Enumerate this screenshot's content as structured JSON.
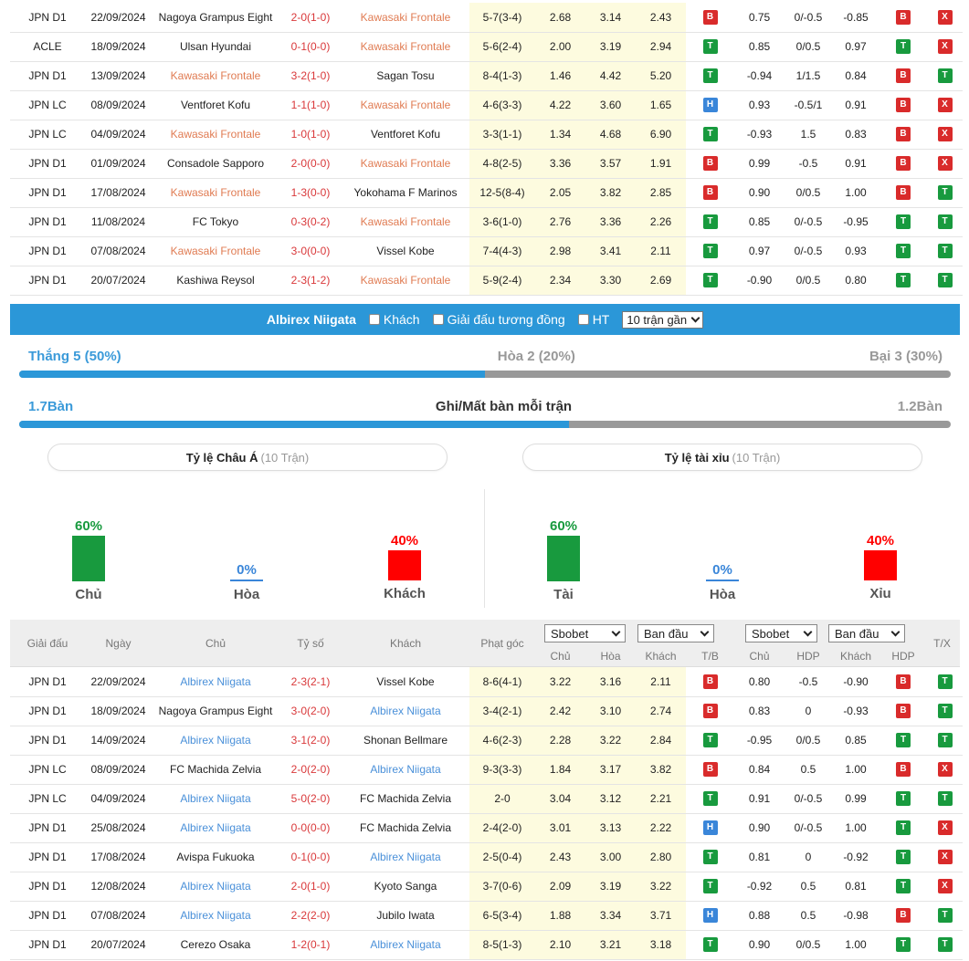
{
  "top_rows": [
    {
      "league": "JPN D1",
      "date": "22/09/2024",
      "home": "Nagoya Grampus Eight",
      "score": "2-0(1-0)",
      "away": "Kawasaki Frontale",
      "corner": "5-7(3-4)",
      "o1": "2.68",
      "o2": "3.14",
      "o3": "2.43",
      "r1": "B",
      "h1": "0.75",
      "h2": "0/-0.5",
      "h3": "-0.85",
      "r2": "B",
      "r3": "X",
      "hl": "away"
    },
    {
      "league": "ACLE",
      "date": "18/09/2024",
      "home": "Ulsan Hyundai",
      "score": "0-1(0-0)",
      "away": "Kawasaki Frontale",
      "corner": "5-6(2-4)",
      "o1": "2.00",
      "o2": "3.19",
      "o3": "2.94",
      "r1": "T",
      "h1": "0.85",
      "h2": "0/0.5",
      "h3": "0.97",
      "r2": "T",
      "r3": "X",
      "hl": "away"
    },
    {
      "league": "JPN D1",
      "date": "13/09/2024",
      "home": "Kawasaki Frontale",
      "score": "3-2(1-0)",
      "away": "Sagan Tosu",
      "corner": "8-4(1-3)",
      "o1": "1.46",
      "o2": "4.42",
      "o3": "5.20",
      "r1": "T",
      "h1": "-0.94",
      "h2": "1/1.5",
      "h3": "0.84",
      "r2": "B",
      "r3": "T",
      "hl": "home"
    },
    {
      "league": "JPN LC",
      "date": "08/09/2024",
      "home": "Ventforet Kofu",
      "score": "1-1(1-0)",
      "away": "Kawasaki Frontale",
      "corner": "4-6(3-3)",
      "o1": "4.22",
      "o2": "3.60",
      "o3": "1.65",
      "r1": "H",
      "h1": "0.93",
      "h2": "-0.5/1",
      "h3": "0.91",
      "r2": "B",
      "r3": "X",
      "hl": "away"
    },
    {
      "league": "JPN LC",
      "date": "04/09/2024",
      "home": "Kawasaki Frontale",
      "score": "1-0(1-0)",
      "away": "Ventforet Kofu",
      "corner": "3-3(1-1)",
      "o1": "1.34",
      "o2": "4.68",
      "o3": "6.90",
      "r1": "T",
      "h1": "-0.93",
      "h2": "1.5",
      "h3": "0.83",
      "r2": "B",
      "r3": "X",
      "hl": "home"
    },
    {
      "league": "JPN D1",
      "date": "01/09/2024",
      "home": "Consadole Sapporo",
      "score": "2-0(0-0)",
      "away": "Kawasaki Frontale",
      "corner": "4-8(2-5)",
      "o1": "3.36",
      "o2": "3.57",
      "o3": "1.91",
      "r1": "B",
      "h1": "0.99",
      "h2": "-0.5",
      "h3": "0.91",
      "r2": "B",
      "r3": "X",
      "hl": "away"
    },
    {
      "league": "JPN D1",
      "date": "17/08/2024",
      "home": "Kawasaki Frontale",
      "score": "1-3(0-0)",
      "away": "Yokohama F Marinos",
      "corner": "12-5(8-4)",
      "o1": "2.05",
      "o2": "3.82",
      "o3": "2.85",
      "r1": "B",
      "h1": "0.90",
      "h2": "0/0.5",
      "h3": "1.00",
      "r2": "B",
      "r3": "T",
      "hl": "home"
    },
    {
      "league": "JPN D1",
      "date": "11/08/2024",
      "home": "FC Tokyo",
      "score": "0-3(0-2)",
      "away": "Kawasaki Frontale",
      "corner": "3-6(1-0)",
      "o1": "2.76",
      "o2": "3.36",
      "o3": "2.26",
      "r1": "T",
      "h1": "0.85",
      "h2": "0/-0.5",
      "h3": "-0.95",
      "r2": "T",
      "r3": "T",
      "hl": "away"
    },
    {
      "league": "JPN D1",
      "date": "07/08/2024",
      "home": "Kawasaki Frontale",
      "score": "3-0(0-0)",
      "away": "Vissel Kobe",
      "corner": "7-4(4-3)",
      "o1": "2.98",
      "o2": "3.41",
      "o3": "2.11",
      "r1": "T",
      "h1": "0.97",
      "h2": "0/-0.5",
      "h3": "0.93",
      "r2": "T",
      "r3": "T",
      "hl": "home"
    },
    {
      "league": "JPN D1",
      "date": "20/07/2024",
      "home": "Kashiwa Reysol",
      "score": "2-3(1-2)",
      "away": "Kawasaki Frontale",
      "corner": "5-9(2-4)",
      "o1": "2.34",
      "o2": "3.30",
      "o3": "2.69",
      "r1": "T",
      "h1": "-0.90",
      "h2": "0/0.5",
      "h3": "0.80",
      "r2": "T",
      "r3": "T",
      "hl": "away"
    }
  ],
  "team_bar": {
    "team_name": "Albirex Niigata",
    "opt_away": "Khách",
    "opt_same_league": "Giải đấu tương đồng",
    "opt_ht": "HT",
    "recent_select": "10 trận gần"
  },
  "summary": {
    "win_label": "Thắng 5 (50%)",
    "draw_label": "Hòa 2 (20%)",
    "loss_label": "Bại 3 (30%)",
    "win_fraction": 0.5,
    "goals_for": "1.7Bàn",
    "goals_title": "Ghi/Mất bàn mỗi trận",
    "goals_against": "1.2Bàn",
    "goals_fraction": 0.59
  },
  "asian": {
    "title": "Tỷ lệ Châu Á",
    "sub": "(10 Trận)",
    "home_pct": "60%",
    "draw_pct": "0%",
    "away_pct": "40%",
    "home_label": "Chủ",
    "draw_label": "Hòa",
    "away_label": "Khách",
    "home_value": 60,
    "away_value": 40
  },
  "overunder": {
    "title": "Tỷ lệ tài xỉu",
    "sub": "(10 Trận)",
    "over_pct": "60%",
    "draw_pct": "0%",
    "under_pct": "40%",
    "over_label": "Tài",
    "draw_label": "Hòa",
    "under_label": "Xỉu",
    "over_value": 60,
    "under_value": 40
  },
  "colors": {
    "green": "#189a3e",
    "red": "#ff0000",
    "blue": "#2b97d8"
  },
  "table_header": {
    "league": "Giải đấu",
    "date": "Ngày",
    "home": "Chủ",
    "score": "Tỷ số",
    "away": "Khách",
    "corner": "Phạt góc",
    "book1": "Sbobet",
    "type1": "Ban đầu",
    "book2": "Sbobet",
    "type2": "Ban đầu",
    "sub_home": "Chủ",
    "sub_draw": "Hòa",
    "sub_away": "Khách",
    "sub_tb": "T/B",
    "sub_home2": "Chủ",
    "sub_hdp": "HDP",
    "sub_away2": "Khách",
    "sub_hdp2": "HDP",
    "tx": "T/X"
  },
  "bottom_rows": [
    {
      "league": "JPN D1",
      "date": "22/09/2024",
      "home": "Albirex Niigata",
      "score": "2-3(2-1)",
      "away": "Vissel Kobe",
      "corner": "8-6(4-1)",
      "o1": "3.22",
      "o2": "3.16",
      "o3": "2.11",
      "r1": "B",
      "h1": "0.80",
      "h2": "-0.5",
      "h3": "-0.90",
      "r2": "B",
      "r3": "T",
      "hl": "home"
    },
    {
      "league": "JPN D1",
      "date": "18/09/2024",
      "home": "Nagoya Grampus Eight",
      "score": "3-0(2-0)",
      "away": "Albirex Niigata",
      "corner": "3-4(2-1)",
      "o1": "2.42",
      "o2": "3.10",
      "o3": "2.74",
      "r1": "B",
      "h1": "0.83",
      "h2": "0",
      "h3": "-0.93",
      "r2": "B",
      "r3": "T",
      "hl": "away"
    },
    {
      "league": "JPN D1",
      "date": "14/09/2024",
      "home": "Albirex Niigata",
      "score": "3-1(2-0)",
      "away": "Shonan Bellmare",
      "corner": "4-6(2-3)",
      "o1": "2.28",
      "o2": "3.22",
      "o3": "2.84",
      "r1": "T",
      "h1": "-0.95",
      "h2": "0/0.5",
      "h3": "0.85",
      "r2": "T",
      "r3": "T",
      "hl": "home"
    },
    {
      "league": "JPN LC",
      "date": "08/09/2024",
      "home": "FC Machida Zelvia",
      "score": "2-0(2-0)",
      "away": "Albirex Niigata",
      "corner": "9-3(3-3)",
      "o1": "1.84",
      "o2": "3.17",
      "o3": "3.82",
      "r1": "B",
      "h1": "0.84",
      "h2": "0.5",
      "h3": "1.00",
      "r2": "B",
      "r3": "X",
      "hl": "away"
    },
    {
      "league": "JPN LC",
      "date": "04/09/2024",
      "home": "Albirex Niigata",
      "score": "5-0(2-0)",
      "away": "FC Machida Zelvia",
      "corner": "2-0",
      "o1": "3.04",
      "o2": "3.12",
      "o3": "2.21",
      "r1": "T",
      "h1": "0.91",
      "h2": "0/-0.5",
      "h3": "0.99",
      "r2": "T",
      "r3": "T",
      "hl": "home"
    },
    {
      "league": "JPN D1",
      "date": "25/08/2024",
      "home": "Albirex Niigata",
      "score": "0-0(0-0)",
      "away": "FC Machida Zelvia",
      "corner": "2-4(2-0)",
      "o1": "3.01",
      "o2": "3.13",
      "o3": "2.22",
      "r1": "H",
      "h1": "0.90",
      "h2": "0/-0.5",
      "h3": "1.00",
      "r2": "T",
      "r3": "X",
      "hl": "home"
    },
    {
      "league": "JPN D1",
      "date": "17/08/2024",
      "home": "Avispa Fukuoka",
      "score": "0-1(0-0)",
      "away": "Albirex Niigata",
      "corner": "2-5(0-4)",
      "o1": "2.43",
      "o2": "3.00",
      "o3": "2.80",
      "r1": "T",
      "h1": "0.81",
      "h2": "0",
      "h3": "-0.92",
      "r2": "T",
      "r3": "X",
      "hl": "away"
    },
    {
      "league": "JPN D1",
      "date": "12/08/2024",
      "home": "Albirex Niigata",
      "score": "2-0(1-0)",
      "away": "Kyoto Sanga",
      "corner": "3-7(0-6)",
      "o1": "2.09",
      "o2": "3.19",
      "o3": "3.22",
      "r1": "T",
      "h1": "-0.92",
      "h2": "0.5",
      "h3": "0.81",
      "r2": "T",
      "r3": "X",
      "hl": "home"
    },
    {
      "league": "JPN D1",
      "date": "07/08/2024",
      "home": "Albirex Niigata",
      "score": "2-2(2-0)",
      "away": "Jubilo Iwata",
      "corner": "6-5(3-4)",
      "o1": "1.88",
      "o2": "3.34",
      "o3": "3.71",
      "r1": "H",
      "h1": "0.88",
      "h2": "0.5",
      "h3": "-0.98",
      "r2": "B",
      "r3": "T",
      "hl": "home"
    },
    {
      "league": "JPN D1",
      "date": "20/07/2024",
      "home": "Cerezo Osaka",
      "score": "1-2(0-1)",
      "away": "Albirex Niigata",
      "corner": "8-5(1-3)",
      "o1": "2.10",
      "o2": "3.21",
      "o3": "3.18",
      "r1": "T",
      "h1": "0.90",
      "h2": "0/0.5",
      "h3": "1.00",
      "r2": "T",
      "r3": "T",
      "hl": "away"
    }
  ]
}
